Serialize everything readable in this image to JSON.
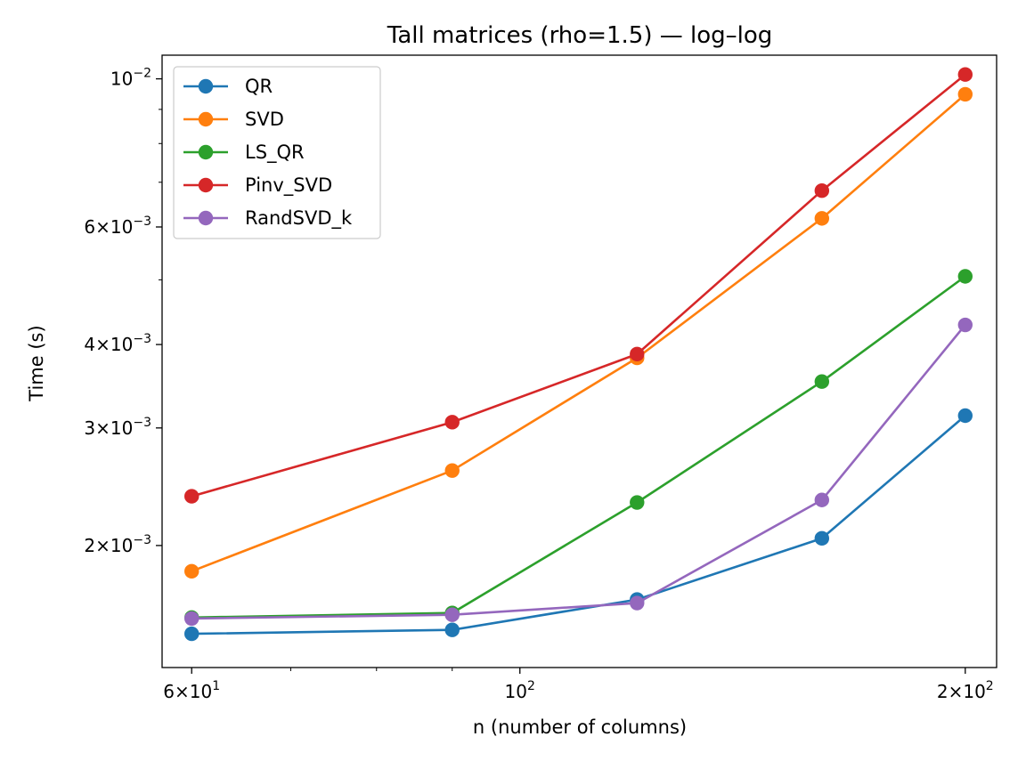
{
  "chart_data": {
    "type": "line",
    "title": "Tall matrices (rho=1.5) — log–log",
    "xlabel": "n (number of columns)",
    "ylabel": "Time (s)",
    "xscale": "log",
    "yscale": "log",
    "x": [
      60,
      90,
      120,
      160,
      200
    ],
    "xlim": [
      57.3,
      210
    ],
    "ylim": [
      0.001313,
      0.01085
    ],
    "legend_position": "top-left",
    "grid": false,
    "x_ticks": [
      {
        "value": 60,
        "base": "6",
        "exp": "1"
      },
      {
        "value": 100,
        "base": "",
        "exp": "2"
      },
      {
        "value": 200,
        "base": "2",
        "exp": "2"
      }
    ],
    "x_minor_ticks": [
      70,
      80,
      90
    ],
    "y_ticks": [
      {
        "value": 0.002,
        "base": "2",
        "exp": "−3"
      },
      {
        "value": 0.003,
        "base": "3",
        "exp": "−3"
      },
      {
        "value": 0.004,
        "base": "4",
        "exp": "−3"
      },
      {
        "value": 0.006,
        "base": "6",
        "exp": "−3"
      },
      {
        "value": 0.01,
        "base": "",
        "exp": "−2"
      }
    ],
    "y_minor_ticks": [
      0.005,
      0.007,
      0.008,
      0.009
    ],
    "series": [
      {
        "name": "QR",
        "color": "#1f77b4",
        "values": [
          0.001475,
          0.001495,
          0.00166,
          0.00205,
          0.00313
        ]
      },
      {
        "name": "SVD",
        "color": "#ff7f0e",
        "values": [
          0.00183,
          0.00259,
          0.00382,
          0.00618,
          0.00948
        ]
      },
      {
        "name": "LS_QR",
        "color": "#2ca02c",
        "values": [
          0.00156,
          0.001585,
          0.00232,
          0.00352,
          0.00506
        ]
      },
      {
        "name": "Pinv_SVD",
        "color": "#d62728",
        "values": [
          0.00237,
          0.00306,
          0.00387,
          0.0068,
          0.01015
        ]
      },
      {
        "name": "RandSVD_k",
        "color": "#9467bd",
        "values": [
          0.001555,
          0.001575,
          0.00164,
          0.00234,
          0.00428
        ]
      }
    ]
  }
}
